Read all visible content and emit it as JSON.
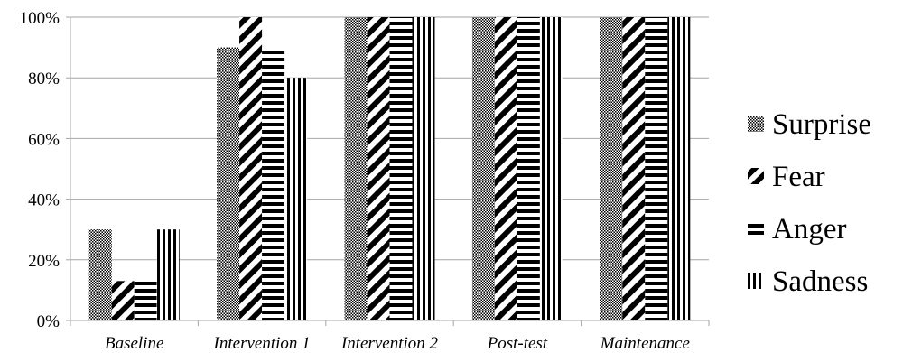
{
  "chart_data": {
    "type": "bar",
    "categories": [
      "Baseline",
      "Intervention 1",
      "Intervention 2",
      "Post-test",
      "Maintenance"
    ],
    "series": [
      {
        "name": "Surprise",
        "values": [
          30,
          90,
          100,
          100,
          100
        ],
        "pattern": "dots"
      },
      {
        "name": "Fear",
        "values": [
          13,
          100,
          100,
          100,
          100
        ],
        "pattern": "diagonal"
      },
      {
        "name": "Anger",
        "values": [
          13,
          90,
          100,
          100,
          100
        ],
        "pattern": "horizontal"
      },
      {
        "name": "Sadness",
        "values": [
          30,
          80,
          100,
          100,
          100
        ],
        "pattern": "vertical"
      }
    ],
    "yticks": [
      "0%",
      "20%",
      "40%",
      "60%",
      "80%",
      "100%"
    ],
    "ylim": [
      0,
      100
    ],
    "grid": true,
    "legend": "right",
    "colors": {
      "ink": "#000000",
      "grid": "#a6a6a6",
      "background": "#ffffff"
    }
  }
}
